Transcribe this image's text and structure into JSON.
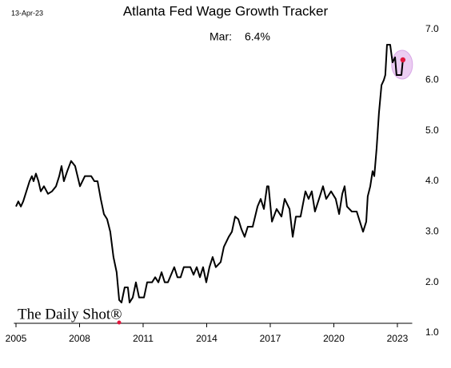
{
  "chart_data": {
    "type": "line",
    "title": "Atlanta Fed Wage Growth Tracker",
    "date": "13-Apr-23",
    "annotation_label": "Mar:",
    "annotation_value": "6.4%",
    "source": "The Daily Shot®",
    "xlim": [
      2004.9,
      2023.7
    ],
    "xticks": [
      2005,
      2008,
      2011,
      2014,
      2017,
      2020,
      2023
    ],
    "ylim": [
      1,
      7
    ],
    "yticks": [
      {
        "value": 1,
        "label": "1.0"
      },
      {
        "value": 2,
        "label": "2.0"
      },
      {
        "value": 3,
        "label": "3.0"
      },
      {
        "value": 4,
        "label": "4.0"
      },
      {
        "value": 5,
        "label": "5.0"
      },
      {
        "value": 6,
        "label": "6.0"
      },
      {
        "value": 7,
        "label": "7.0"
      }
    ],
    "grid": false,
    "series": [
      {
        "color": "#000000",
        "highlight_color": "#e0163c",
        "x": [
          2005.0,
          2005.11,
          2005.23,
          2005.34,
          2005.49,
          2005.64,
          2005.75,
          2005.83,
          2005.94,
          2006.06,
          2006.17,
          2006.32,
          2006.51,
          2006.7,
          2006.89,
          2007.04,
          2007.15,
          2007.26,
          2007.42,
          2007.6,
          2007.79,
          2008.02,
          2008.25,
          2008.55,
          2008.7,
          2008.85,
          2009.0,
          2009.15,
          2009.3,
          2009.45,
          2009.6,
          2009.75,
          2009.87,
          2009.98,
          2010.13,
          2010.28,
          2010.36,
          2010.51,
          2010.66,
          2010.81,
          2011.04,
          2011.19,
          2011.42,
          2011.57,
          2011.72,
          2011.87,
          2012.02,
          2012.17,
          2012.32,
          2012.47,
          2012.62,
          2012.77,
          2012.92,
          2013.23,
          2013.38,
          2013.53,
          2013.68,
          2013.83,
          2013.98,
          2014.13,
          2014.28,
          2014.43,
          2014.66,
          2014.81,
          2015.04,
          2015.19,
          2015.34,
          2015.49,
          2015.64,
          2015.79,
          2015.94,
          2016.17,
          2016.4,
          2016.55,
          2016.7,
          2016.85,
          2016.92,
          2017.08,
          2017.3,
          2017.53,
          2017.68,
          2017.91,
          2018.06,
          2018.21,
          2018.43,
          2018.66,
          2018.81,
          2018.96,
          2019.11,
          2019.34,
          2019.49,
          2019.64,
          2019.87,
          2020.09,
          2020.25,
          2020.4,
          2020.51,
          2020.62,
          2020.85,
          2021.08,
          2021.23,
          2021.38,
          2021.53,
          2021.6,
          2021.72,
          2021.83,
          2021.91,
          2022.02,
          2022.13,
          2022.25,
          2022.36,
          2022.43,
          2022.51,
          2022.66,
          2022.77,
          2022.89,
          2022.96,
          2023.19,
          2023.26
        ],
        "values": [
          3.5,
          3.6,
          3.5,
          3.6,
          3.8,
          4.0,
          4.1,
          4.0,
          4.15,
          4.0,
          3.8,
          3.9,
          3.75,
          3.8,
          3.9,
          4.1,
          4.3,
          4.0,
          4.2,
          4.4,
          4.3,
          3.9,
          4.1,
          4.1,
          4.0,
          4.0,
          3.65,
          3.35,
          3.25,
          3.0,
          2.5,
          2.2,
          1.65,
          1.6,
          1.9,
          1.9,
          1.6,
          1.7,
          2.0,
          1.7,
          1.7,
          2.0,
          2.0,
          2.1,
          2.0,
          2.2,
          2.0,
          2.0,
          2.15,
          2.3,
          2.1,
          2.1,
          2.3,
          2.3,
          2.15,
          2.3,
          2.1,
          2.3,
          2.0,
          2.3,
          2.5,
          2.3,
          2.4,
          2.7,
          2.9,
          3.0,
          3.3,
          3.25,
          3.05,
          2.9,
          3.1,
          3.1,
          3.5,
          3.65,
          3.45,
          3.9,
          3.9,
          3.2,
          3.45,
          3.3,
          3.65,
          3.45,
          2.9,
          3.3,
          3.3,
          3.8,
          3.65,
          3.8,
          3.4,
          3.7,
          3.9,
          3.65,
          3.8,
          3.65,
          3.35,
          3.75,
          3.9,
          3.5,
          3.4,
          3.4,
          3.2,
          3.0,
          3.2,
          3.7,
          3.9,
          4.2,
          4.1,
          4.65,
          5.35,
          5.9,
          6.0,
          6.1,
          6.7,
          6.7,
          6.35,
          6.45,
          6.1,
          6.1,
          6.4
        ]
      }
    ]
  }
}
